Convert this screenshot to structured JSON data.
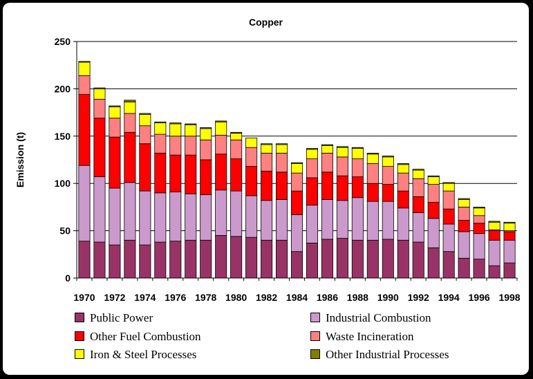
{
  "chart_data": {
    "type": "bar",
    "stacked": true,
    "title": "Copper",
    "xlabel": "",
    "ylabel": "Emission (t)",
    "ylim": [
      0,
      250
    ],
    "yticks": [
      0,
      50,
      100,
      150,
      200,
      250
    ],
    "grid": true,
    "legend_position": "bottom",
    "categories": [
      "1970",
      "1971",
      "1972",
      "1973",
      "1974",
      "1975",
      "1976",
      "1977",
      "1978",
      "1979",
      "1980",
      "1981",
      "1982",
      "1983",
      "1984",
      "1985",
      "1986",
      "1987",
      "1988",
      "1989",
      "1990",
      "1991",
      "1992",
      "1993",
      "1994",
      "1995",
      "1996",
      "1997",
      "1998"
    ],
    "x_tick_labels": [
      "1970",
      "1972",
      "1974",
      "1976",
      "1978",
      "1980",
      "1982",
      "1984",
      "1986",
      "1988",
      "1990",
      "1992",
      "1994",
      "1996",
      "1998"
    ],
    "series": [
      {
        "name": "Public Power",
        "color": "#993366",
        "values": [
          39,
          38,
          35,
          40,
          35,
          38,
          39,
          40,
          40,
          45,
          44,
          43,
          40,
          40,
          28,
          37,
          41,
          42,
          40,
          40,
          41,
          40,
          38,
          32,
          28,
          21,
          20,
          13,
          16
        ]
      },
      {
        "name": "Industrial Combustion",
        "color": "#CC99CC",
        "values": [
          80,
          69,
          60,
          61,
          57,
          52,
          52,
          49,
          48,
          48,
          48,
          44,
          42,
          43,
          39,
          40,
          42,
          40,
          45,
          41,
          40,
          34,
          31,
          31,
          29,
          28,
          27,
          27,
          24
        ]
      },
      {
        "name": "Other Fuel Combustion",
        "color": "#FF0000",
        "values": [
          75,
          62,
          54,
          53,
          50,
          42,
          39,
          41,
          37,
          38,
          34,
          31,
          31,
          29,
          25,
          29,
          29,
          26,
          22,
          19,
          18,
          18,
          17,
          17,
          16,
          12,
          11,
          10,
          9
        ]
      },
      {
        "name": "Waste Incineration",
        "color": "#FF8080",
        "values": [
          20,
          20,
          20,
          20,
          19,
          20,
          20,
          20,
          21,
          20,
          20,
          20,
          19,
          20,
          19,
          20,
          20,
          20,
          19,
          21,
          19,
          19,
          19,
          19,
          19,
          14,
          8,
          1,
          1
        ]
      },
      {
        "name": "Iron & Steel Processes",
        "color": "#FFFF00",
        "values": [
          14,
          11,
          12,
          12,
          12,
          12,
          13,
          12,
          12,
          14,
          7,
          10,
          9,
          9,
          10,
          10,
          8,
          10,
          11,
          10,
          10,
          9,
          9,
          8,
          8,
          8,
          8,
          8,
          8
        ]
      },
      {
        "name": "Other Industrial Processes",
        "color": "#808000",
        "values": [
          1,
          1,
          1,
          2,
          1,
          1,
          1,
          1,
          1,
          1,
          1,
          0,
          1,
          1,
          1,
          1,
          1,
          1,
          1,
          1,
          1,
          1,
          1,
          1,
          1,
          1,
          1,
          1,
          1
        ]
      }
    ]
  }
}
